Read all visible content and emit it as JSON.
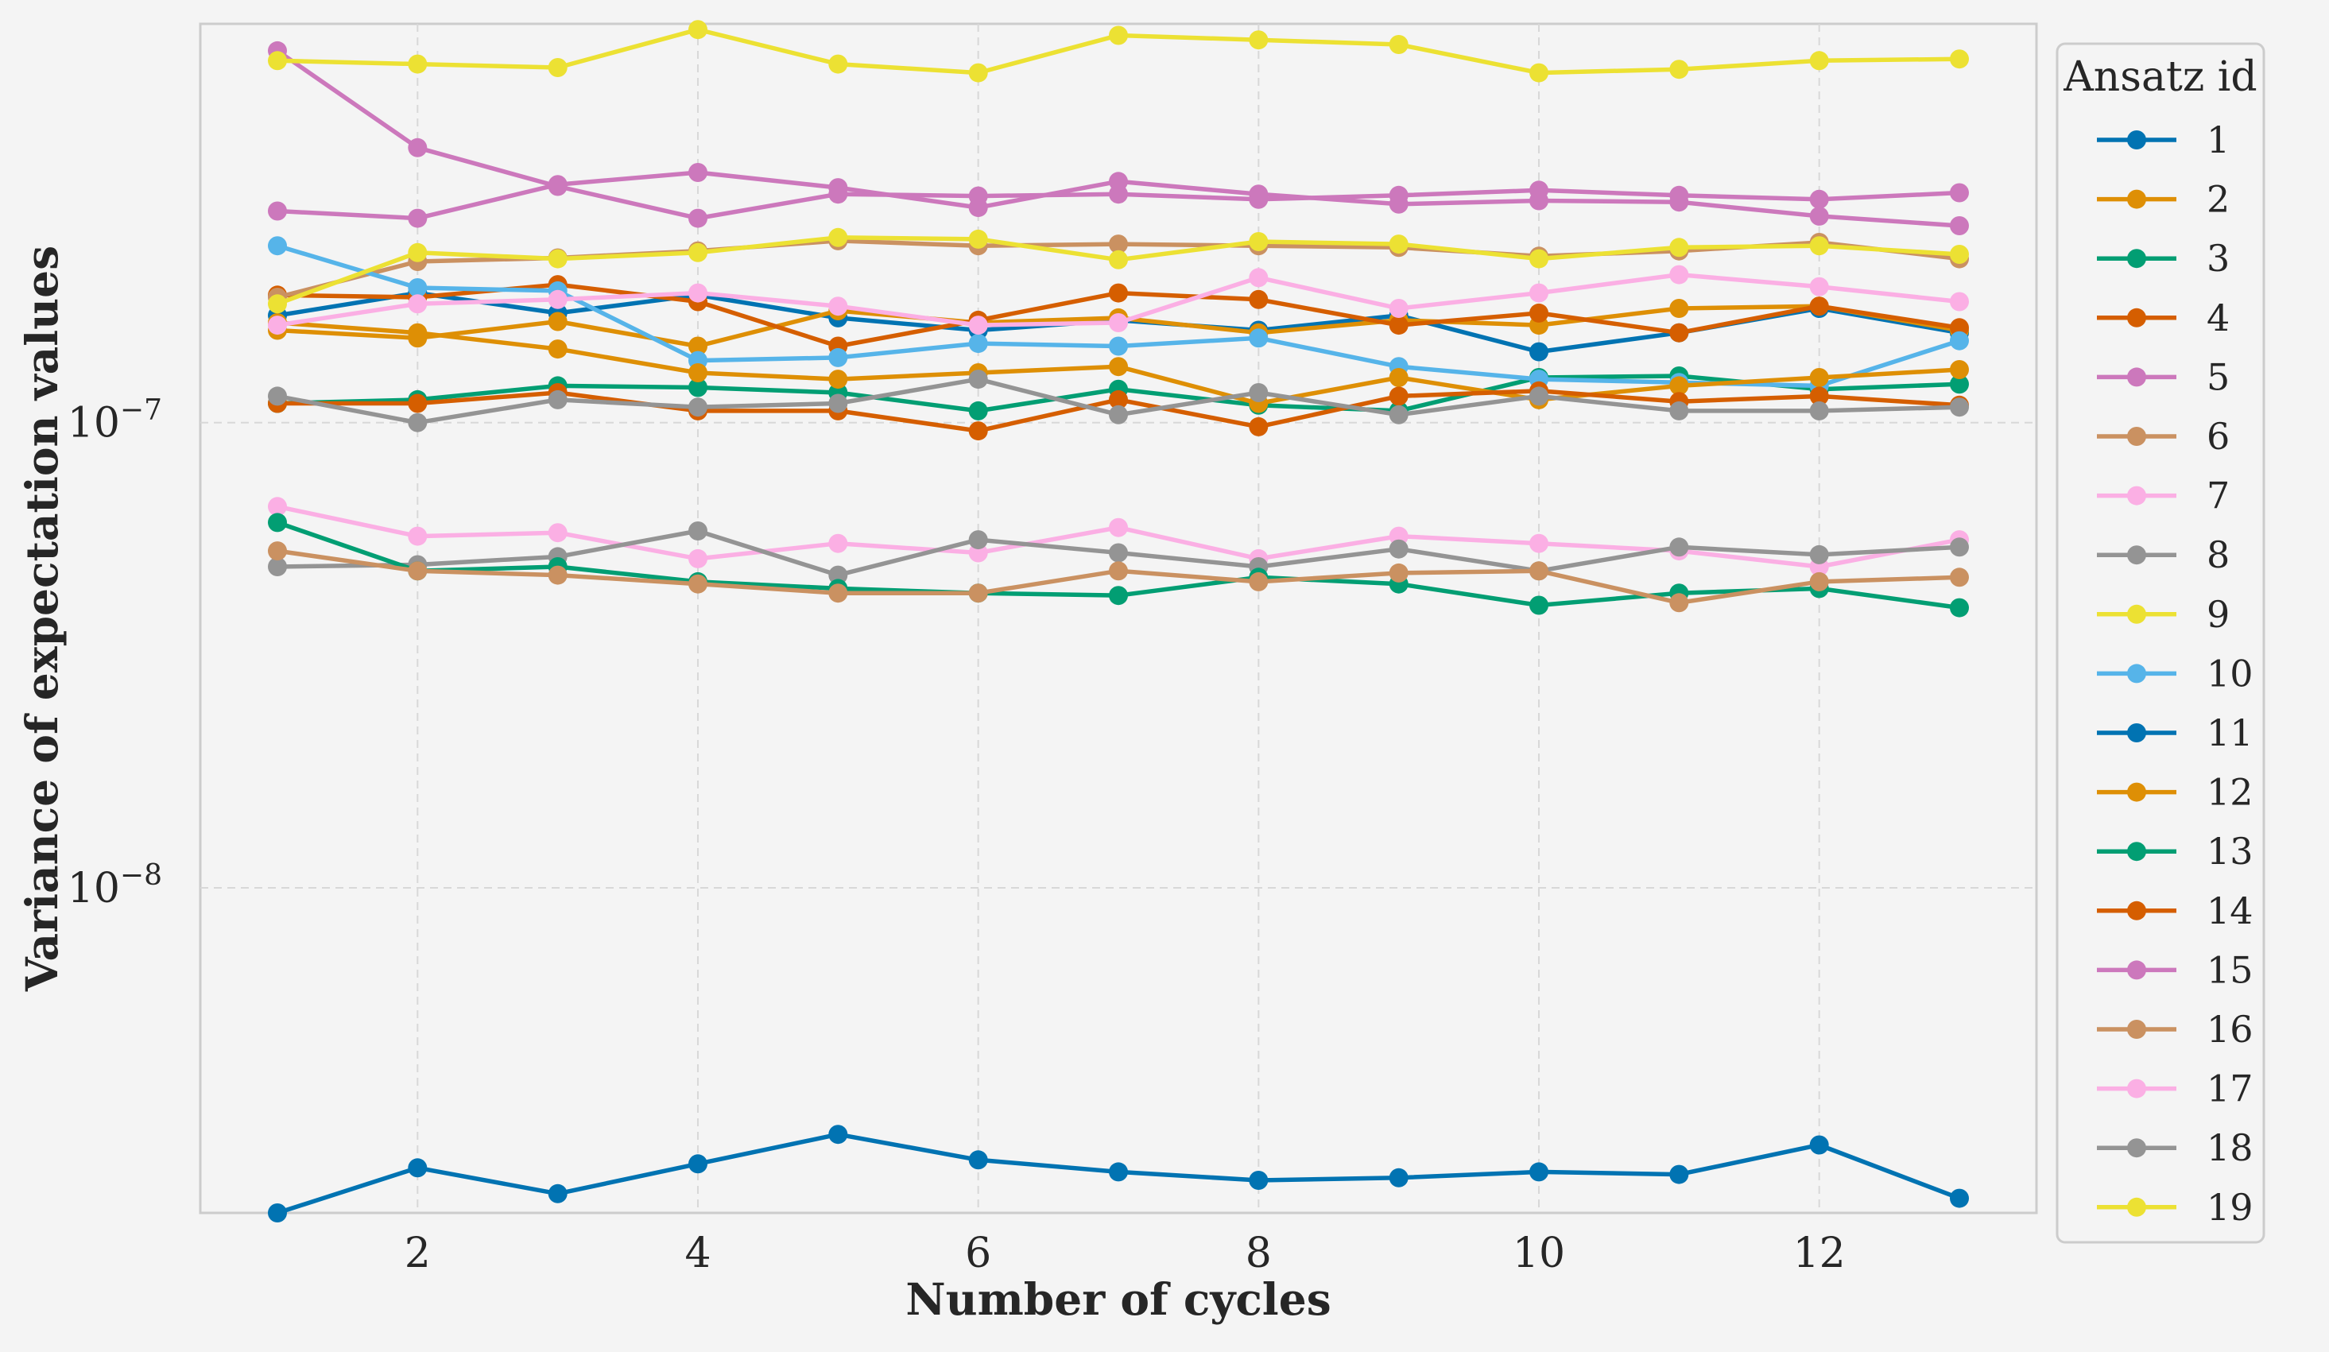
{
  "chart_data": {
    "type": "line",
    "title": "",
    "xlabel": "Number of cycles",
    "ylabel": "Variance of expectation values",
    "yscale": "log",
    "xlim": [
      0.45,
      13.55
    ],
    "ylim": [
      2e-09,
      7.2e-07
    ],
    "xticks": [
      2,
      4,
      6,
      8,
      10,
      12
    ],
    "xtick_labels": [
      "2",
      "4",
      "6",
      "8",
      "10",
      "12"
    ],
    "yticks": [
      1e-08,
      1e-07
    ],
    "ytick_labels": [
      {
        "base": "10",
        "exp": "−8"
      },
      {
        "base": "10",
        "exp": "−7"
      }
    ],
    "grid": true,
    "legend_title": "Ansatz id",
    "legend_position": "outside-right",
    "x": [
      1,
      2,
      3,
      4,
      5,
      6,
      7,
      8,
      9,
      10,
      11,
      12,
      13
    ],
    "series": [
      {
        "name": "1",
        "color": "#0173b2",
        "values": [
          1.7e-07,
          1.9e-07,
          1.72e-07,
          1.88e-07,
          1.68e-07,
          1.58e-07,
          1.66e-07,
          1.58e-07,
          1.7e-07,
          1.42e-07,
          1.56e-07,
          1.76e-07,
          1.56e-07
        ]
      },
      {
        "name": "2",
        "color": "#de8f05",
        "values": [
          1.58e-07,
          1.52e-07,
          1.65e-07,
          1.46e-07,
          1.74e-07,
          1.64e-07,
          1.68e-07,
          1.56e-07,
          1.66e-07,
          1.62e-07,
          1.76e-07,
          1.78e-07,
          1.58e-07
        ]
      },
      {
        "name": "3",
        "color": "#029e73",
        "values": [
          1.1e-07,
          1.12e-07,
          1.2e-07,
          1.19e-07,
          1.16e-07,
          1.06e-07,
          1.18e-07,
          1.09e-07,
          1.06e-07,
          1.25e-07,
          1.26e-07,
          1.18e-07,
          1.21e-07
        ]
      },
      {
        "name": "4",
        "color": "#d55e00",
        "values": [
          1.88e-07,
          1.86e-07,
          1.98e-07,
          1.82e-07,
          1.46e-07,
          1.66e-07,
          1.9e-07,
          1.84e-07,
          1.62e-07,
          1.72e-07,
          1.56e-07,
          1.78e-07,
          1.6e-07
        ]
      },
      {
        "name": "5",
        "color": "#cc78bc",
        "values": [
          6.3e-07,
          3.9e-07,
          3.22e-07,
          2.75e-07,
          3.1e-07,
          3.07e-07,
          3.1e-07,
          3.02e-07,
          3.08e-07,
          3.16e-07,
          3.08e-07,
          3.02e-07,
          3.12e-07
        ]
      },
      {
        "name": "6",
        "color": "#ca9161",
        "values": [
          1.86e-07,
          2.22e-07,
          2.26e-07,
          2.34e-07,
          2.46e-07,
          2.4e-07,
          2.42e-07,
          2.4e-07,
          2.38e-07,
          2.28e-07,
          2.34e-07,
          2.44e-07,
          2.25e-07
        ]
      },
      {
        "name": "7",
        "color": "#fbafe4",
        "values": [
          6.6e-08,
          5.7e-08,
          5.8e-08,
          5.1e-08,
          5.5e-08,
          5.25e-08,
          5.95e-08,
          5.1e-08,
          5.7e-08,
          5.5e-08,
          5.3e-08,
          4.9e-08,
          5.6e-08
        ]
      },
      {
        "name": "8",
        "color": "#949494",
        "values": [
          4.9e-08,
          4.95e-08,
          5.15e-08,
          5.85e-08,
          4.7e-08,
          5.6e-08,
          5.25e-08,
          4.9e-08,
          5.35e-08,
          4.8e-08,
          5.4e-08,
          5.2e-08,
          5.4e-08
        ]
      },
      {
        "name": "9",
        "color": "#ece133",
        "values": [
          6e-07,
          5.9e-07,
          5.8e-07,
          7e-07,
          5.9e-07,
          5.65e-07,
          6.8e-07,
          6.65e-07,
          6.5e-07,
          5.65e-07,
          5.75e-07,
          6e-07,
          6.05e-07
        ]
      },
      {
        "name": "10",
        "color": "#56b4e9",
        "values": [
          2.4e-07,
          1.95e-07,
          1.92e-07,
          1.36e-07,
          1.38e-07,
          1.48e-07,
          1.46e-07,
          1.52e-07,
          1.32e-07,
          1.24e-07,
          1.22e-07,
          1.2e-07,
          1.5e-07
        ]
      },
      {
        "name": "11",
        "color": "#0173b2",
        "values": [
          2e-09,
          2.5e-09,
          2.2e-09,
          2.55e-09,
          2.95e-09,
          2.6e-09,
          2.45e-09,
          2.35e-09,
          2.38e-09,
          2.45e-09,
          2.42e-09,
          2.8e-09,
          2.15e-09
        ]
      },
      {
        "name": "12",
        "color": "#de8f05",
        "values": [
          1.64e-07,
          1.56e-07,
          1.44e-07,
          1.28e-07,
          1.24e-07,
          1.28e-07,
          1.32e-07,
          1.1e-07,
          1.25e-07,
          1.12e-07,
          1.2e-07,
          1.25e-07,
          1.3e-07
        ]
      },
      {
        "name": "13",
        "color": "#029e73",
        "values": [
          6.1e-08,
          4.8e-08,
          4.9e-08,
          4.55e-08,
          4.4e-08,
          4.3e-08,
          4.25e-08,
          4.65e-08,
          4.5e-08,
          4.05e-08,
          4.3e-08,
          4.4e-08,
          4e-08
        ]
      },
      {
        "name": "14",
        "color": "#d55e00",
        "values": [
          1.1e-07,
          1.1e-07,
          1.16e-07,
          1.06e-07,
          1.06e-07,
          9.6e-08,
          1.12e-07,
          9.8e-08,
          1.14e-07,
          1.17e-07,
          1.11e-07,
          1.14e-07,
          1.09e-07
        ]
      },
      {
        "name": "15",
        "color": "#cc78bc",
        "values": [
          2.85e-07,
          2.75e-07,
          3.25e-07,
          3.45e-07,
          3.2e-07,
          2.9e-07,
          3.3e-07,
          3.1e-07,
          2.95e-07,
          3e-07,
          2.98e-07,
          2.78e-07,
          2.65e-07
        ]
      },
      {
        "name": "16",
        "color": "#ca9161",
        "values": [
          5.3e-08,
          4.8e-08,
          4.7e-08,
          4.5e-08,
          4.3e-08,
          4.3e-08,
          4.8e-08,
          4.55e-08,
          4.75e-08,
          4.8e-08,
          4.1e-08,
          4.55e-08,
          4.65e-08
        ]
      },
      {
        "name": "17",
        "color": "#fbafe4",
        "values": [
          1.62e-07,
          1.8e-07,
          1.84e-07,
          1.9e-07,
          1.78e-07,
          1.62e-07,
          1.64e-07,
          2.05e-07,
          1.76e-07,
          1.9e-07,
          2.08e-07,
          1.96e-07,
          1.82e-07
        ]
      },
      {
        "name": "18",
        "color": "#949494",
        "values": [
          1.14e-07,
          1e-07,
          1.12e-07,
          1.08e-07,
          1.1e-07,
          1.24e-07,
          1.04e-07,
          1.16e-07,
          1.04e-07,
          1.14e-07,
          1.06e-07,
          1.06e-07,
          1.08e-07
        ]
      },
      {
        "name": "19",
        "color": "#ece133",
        "values": [
          1.8e-07,
          2.32e-07,
          2.25e-07,
          2.32e-07,
          2.5e-07,
          2.48e-07,
          2.24e-07,
          2.45e-07,
          2.42e-07,
          2.25e-07,
          2.38e-07,
          2.4e-07,
          2.3e-07
        ]
      }
    ]
  }
}
